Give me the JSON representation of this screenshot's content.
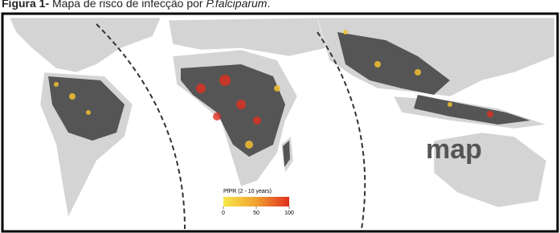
{
  "caption": {
    "label": "Figura 1-",
    "text": " Mapa de risco de infecção por ",
    "species": "P.falciparum",
    "end": "."
  },
  "logo": "map",
  "legend": {
    "title": "PfPR (2 - 10 years)",
    "ticks": [
      0,
      50,
      100
    ],
    "colors": [
      "#f7e84a",
      "#f0a030",
      "#e03020"
    ]
  }
}
